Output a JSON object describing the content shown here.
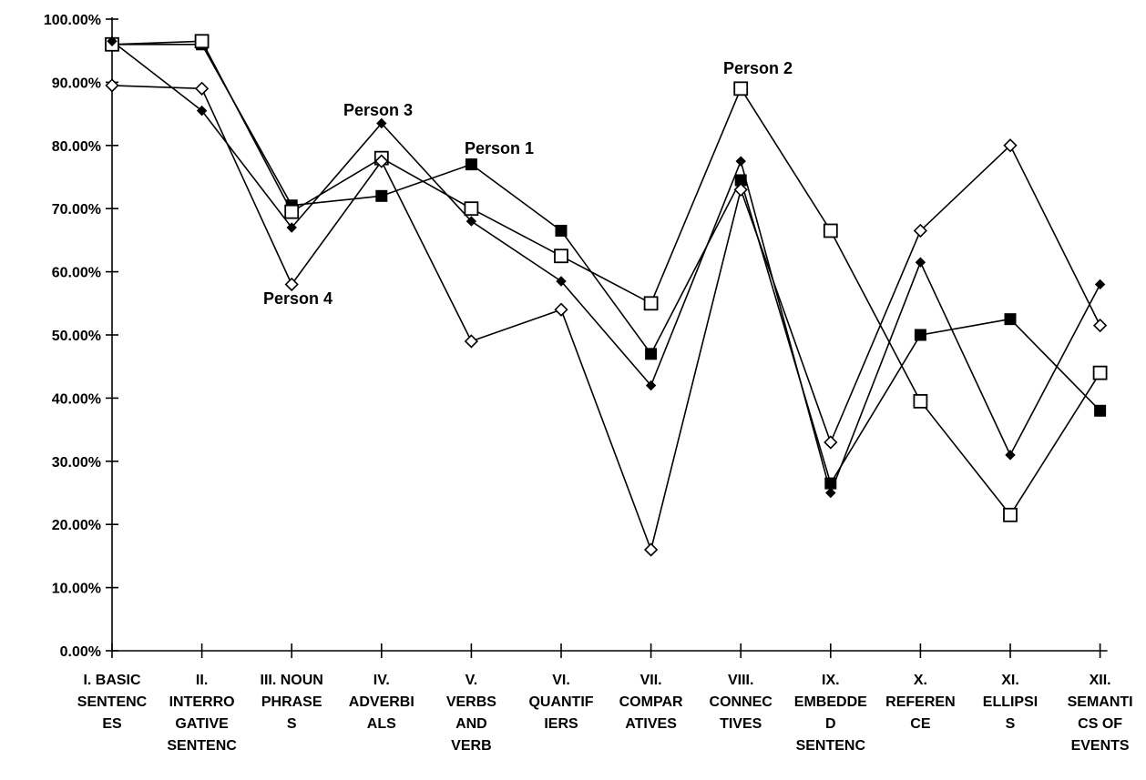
{
  "chart_data": {
    "type": "line",
    "title": "",
    "xlabel": "",
    "ylabel": "",
    "ylim": [
      0,
      100
    ],
    "y_ticks": [
      "0.00%",
      "10.00%",
      "20.00%",
      "30.00%",
      "40.00%",
      "50.00%",
      "60.00%",
      "70.00%",
      "80.00%",
      "90.00%",
      "100.00%"
    ],
    "categories": [
      [
        "I. BASIC",
        "SENTENC",
        "ES"
      ],
      [
        "II.",
        "INTERRO",
        "GATIVE",
        "SENTENC"
      ],
      [
        "III. NOUN",
        "PHRASE",
        "S"
      ],
      [
        "IV.",
        "ADVERBI",
        "ALS"
      ],
      [
        "V.",
        "VERBS",
        "AND",
        "VERB"
      ],
      [
        "VI.",
        "QUANTIF",
        "IERS"
      ],
      [
        "VII.",
        "COMPAR",
        "ATIVES"
      ],
      [
        "VIII.",
        "CONNEC",
        "TIVES"
      ],
      [
        "IX.",
        "EMBEDDE",
        "D",
        "SENTENC"
      ],
      [
        "X.",
        "REFEREN",
        "CE"
      ],
      [
        "XI.",
        "ELLIPSI",
        "S"
      ],
      [
        "XII.",
        "SEMANTI",
        "CS OF",
        "EVENTS"
      ]
    ],
    "series": [
      {
        "name": "Person 1",
        "marker": "filled-square",
        "values": [
          96,
          96,
          70.5,
          72,
          77,
          66.5,
          47,
          74.5,
          26.5,
          50,
          52.5,
          38
        ]
      },
      {
        "name": "Person 2",
        "marker": "open-square",
        "values": [
          96,
          96.5,
          69.5,
          78,
          70,
          62.5,
          55,
          89,
          66.5,
          39.5,
          21.5,
          44
        ]
      },
      {
        "name": "Person 3",
        "marker": "filled-diamond",
        "values": [
          96.5,
          85.5,
          67,
          83.5,
          68,
          58.5,
          42,
          77.5,
          25,
          61.5,
          31,
          58
        ]
      },
      {
        "name": "Person 4",
        "marker": "open-diamond",
        "values": [
          89.5,
          89,
          58,
          77.5,
          49,
          54,
          16,
          73,
          33,
          66.5,
          80,
          51.5
        ]
      }
    ],
    "annotations": [
      {
        "text": "Person 1",
        "series": 0
      },
      {
        "text": "Person 2",
        "series": 1
      },
      {
        "text": "Person 3",
        "series": 2
      },
      {
        "text": "Person 4",
        "series": 3
      }
    ],
    "grid": false,
    "legend": "none",
    "line_color": "#000000"
  }
}
